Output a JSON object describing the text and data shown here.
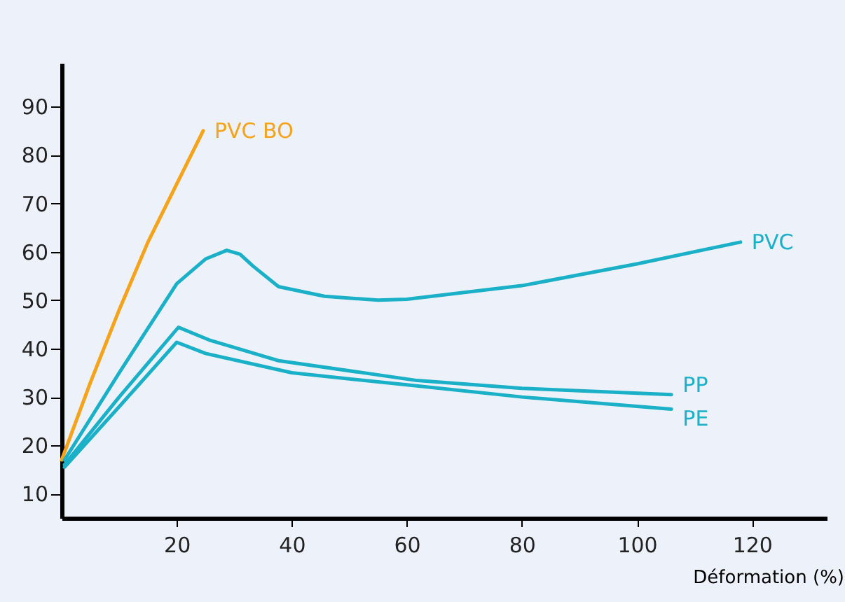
{
  "chart_data": {
    "type": "line",
    "xlabel": "Déformation (%)",
    "xlim": [
      0,
      133
    ],
    "ylim": [
      5,
      99
    ],
    "xticks": [
      20,
      40,
      60,
      80,
      100,
      120
    ],
    "yticks": [
      10,
      20,
      30,
      40,
      50,
      60,
      70,
      80,
      90
    ],
    "grid": false,
    "legend": false,
    "marker": "none",
    "line_style": "solid",
    "series": [
      {
        "name": "PVC BO",
        "color": "#f5a31a",
        "x": [
          0,
          5,
          10,
          15,
          20,
          24.6
        ],
        "values": [
          17,
          33,
          48,
          62,
          74,
          85
        ]
      },
      {
        "name": "PVC",
        "color": "#1ab0c8",
        "x": [
          0.5,
          10,
          20,
          25,
          28.7,
          31,
          33.3,
          37.7,
          45.7,
          55,
          60,
          80,
          100,
          118
        ],
        "values": [
          17,
          35,
          53.4,
          58.5,
          60.3,
          59.5,
          57,
          52.8,
          50.8,
          50,
          50.2,
          53,
          57.5,
          62
        ]
      },
      {
        "name": "PP",
        "color": "#1ab0c8",
        "x": [
          0.5,
          10,
          20.3,
          25.6,
          37.7,
          61.8,
          80,
          106
        ],
        "values": [
          16,
          30,
          44.4,
          41.8,
          37.5,
          33.4,
          31.8,
          30.5
        ]
      },
      {
        "name": "PE",
        "color": "#1ab0c8",
        "x": [
          0.5,
          10,
          20,
          25,
          40,
          60,
          80,
          106
        ],
        "values": [
          15.5,
          28,
          41.3,
          39,
          35,
          32.5,
          30,
          27.5
        ]
      }
    ]
  }
}
